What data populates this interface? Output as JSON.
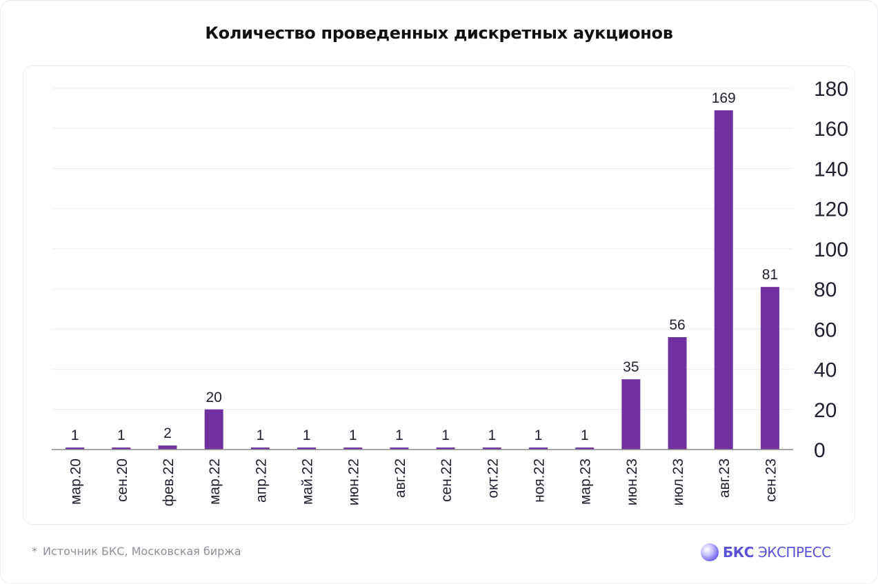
{
  "page": {
    "title": "Количество проведенных дискретных аукционов",
    "footnote_marker": "*",
    "footnote": "Источник БКС, Московская биржа",
    "brand_primary": "БКС",
    "brand_secondary": "ЭКСПРЕСС",
    "brand_color": "#5b4fd8"
  },
  "chart_data": {
    "type": "bar",
    "title": "Количество проведенных дискретных аукционов",
    "categories": [
      "мар.20",
      "сен.20",
      "фев.22",
      "мар.22",
      "апр.22",
      "май.22",
      "июн.22",
      "авг.22",
      "сен.22",
      "окт.22",
      "ноя.22",
      "мар.23",
      "июн.23",
      "июл.23",
      "авг.23",
      "сен.23"
    ],
    "values": [
      1,
      1,
      2,
      20,
      1,
      1,
      1,
      1,
      1,
      1,
      1,
      1,
      35,
      56,
      169,
      81
    ],
    "ylim": [
      0,
      180
    ],
    "yticks": [
      0,
      20,
      40,
      60,
      80,
      100,
      120,
      140,
      160,
      180
    ],
    "y_axis_side": "right",
    "x_tick_rotation": "vertical",
    "data_labels": true,
    "grid": true,
    "bar_color": "#7030a0",
    "grid_color": "#f0f0f0",
    "xlabel": "",
    "ylabel": ""
  }
}
